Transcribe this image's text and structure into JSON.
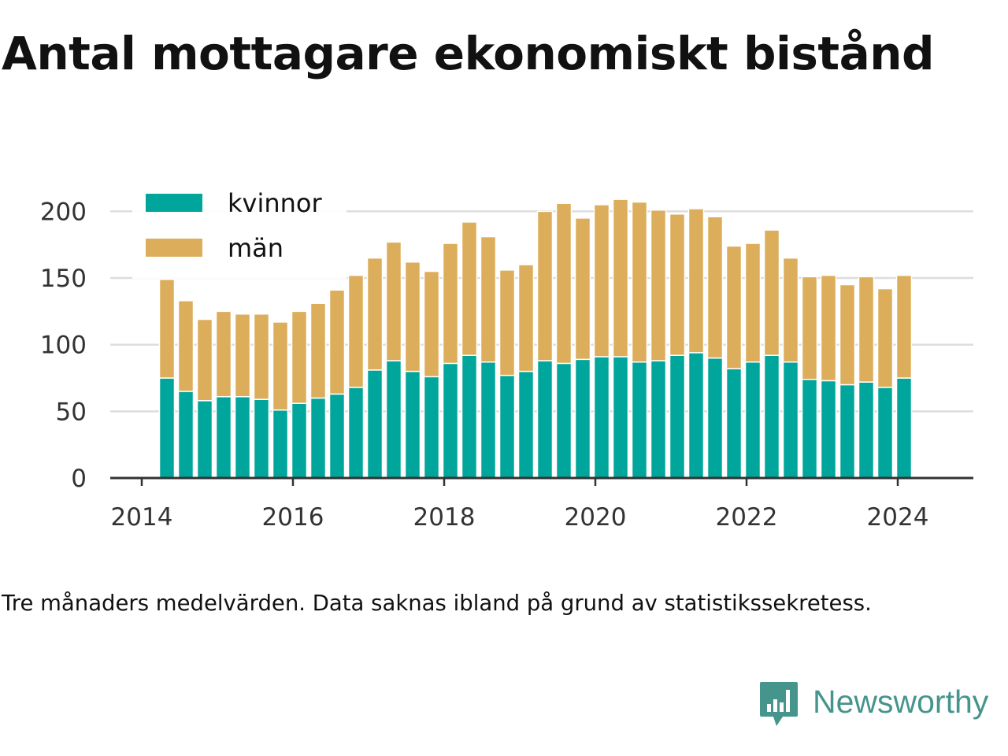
{
  "title": "Antal mottagare ekonomiskt bistånd",
  "footnote": "Tre månaders medelvärden. Data saknas ibland på grund av statistikssekretess.",
  "brand": {
    "name": "Newsworthy",
    "icon": "newsworthy-logo-icon",
    "color": "#46958d"
  },
  "chart_data": {
    "type": "bar",
    "stacked": true,
    "title": "",
    "xlabel": "",
    "ylabel": "",
    "ylim": [
      0,
      215
    ],
    "yticks": [
      0,
      50,
      100,
      150,
      200
    ],
    "xticks": [
      "2014",
      "2016",
      "2018",
      "2020",
      "2022",
      "2024"
    ],
    "xlim": [
      "2013-08",
      "2025-01"
    ],
    "grid": true,
    "legend_position": "top-left",
    "x": [
      "2014-05",
      "2014-08",
      "2014-11",
      "2015-02",
      "2015-05",
      "2015-08",
      "2015-11",
      "2016-02",
      "2016-05",
      "2016-08",
      "2016-11",
      "2017-02",
      "2017-05",
      "2017-08",
      "2017-11",
      "2018-02",
      "2018-05",
      "2018-08",
      "2018-11",
      "2019-02",
      "2019-05",
      "2019-08",
      "2019-11",
      "2020-02",
      "2020-05",
      "2020-08",
      "2020-11",
      "2021-02",
      "2021-05",
      "2021-08",
      "2021-11",
      "2022-02",
      "2022-05",
      "2022-08",
      "2022-11",
      "2023-02",
      "2023-05",
      "2023-08",
      "2023-11",
      "2024-02"
    ],
    "series": [
      {
        "name": "kvinnor",
        "color": "#00a69c",
        "values": [
          75,
          65,
          58,
          61,
          61,
          59,
          51,
          56,
          60,
          63,
          68,
          81,
          88,
          80,
          76,
          86,
          92,
          87,
          77,
          80,
          88,
          86,
          89,
          91,
          91,
          87,
          88,
          92,
          94,
          90,
          82,
          87,
          92,
          87,
          74,
          73,
          70,
          72,
          68,
          75
        ]
      },
      {
        "name": "män",
        "color": "#dcad5a",
        "values": [
          74,
          68,
          61,
          64,
          62,
          64,
          66,
          69,
          71,
          78,
          84,
          84,
          89,
          82,
          79,
          90,
          100,
          94,
          79,
          80,
          112,
          120,
          106,
          114,
          118,
          120,
          113,
          106,
          108,
          106,
          92,
          89,
          94,
          78,
          77,
          79,
          75,
          79,
          74,
          77
        ]
      }
    ]
  }
}
